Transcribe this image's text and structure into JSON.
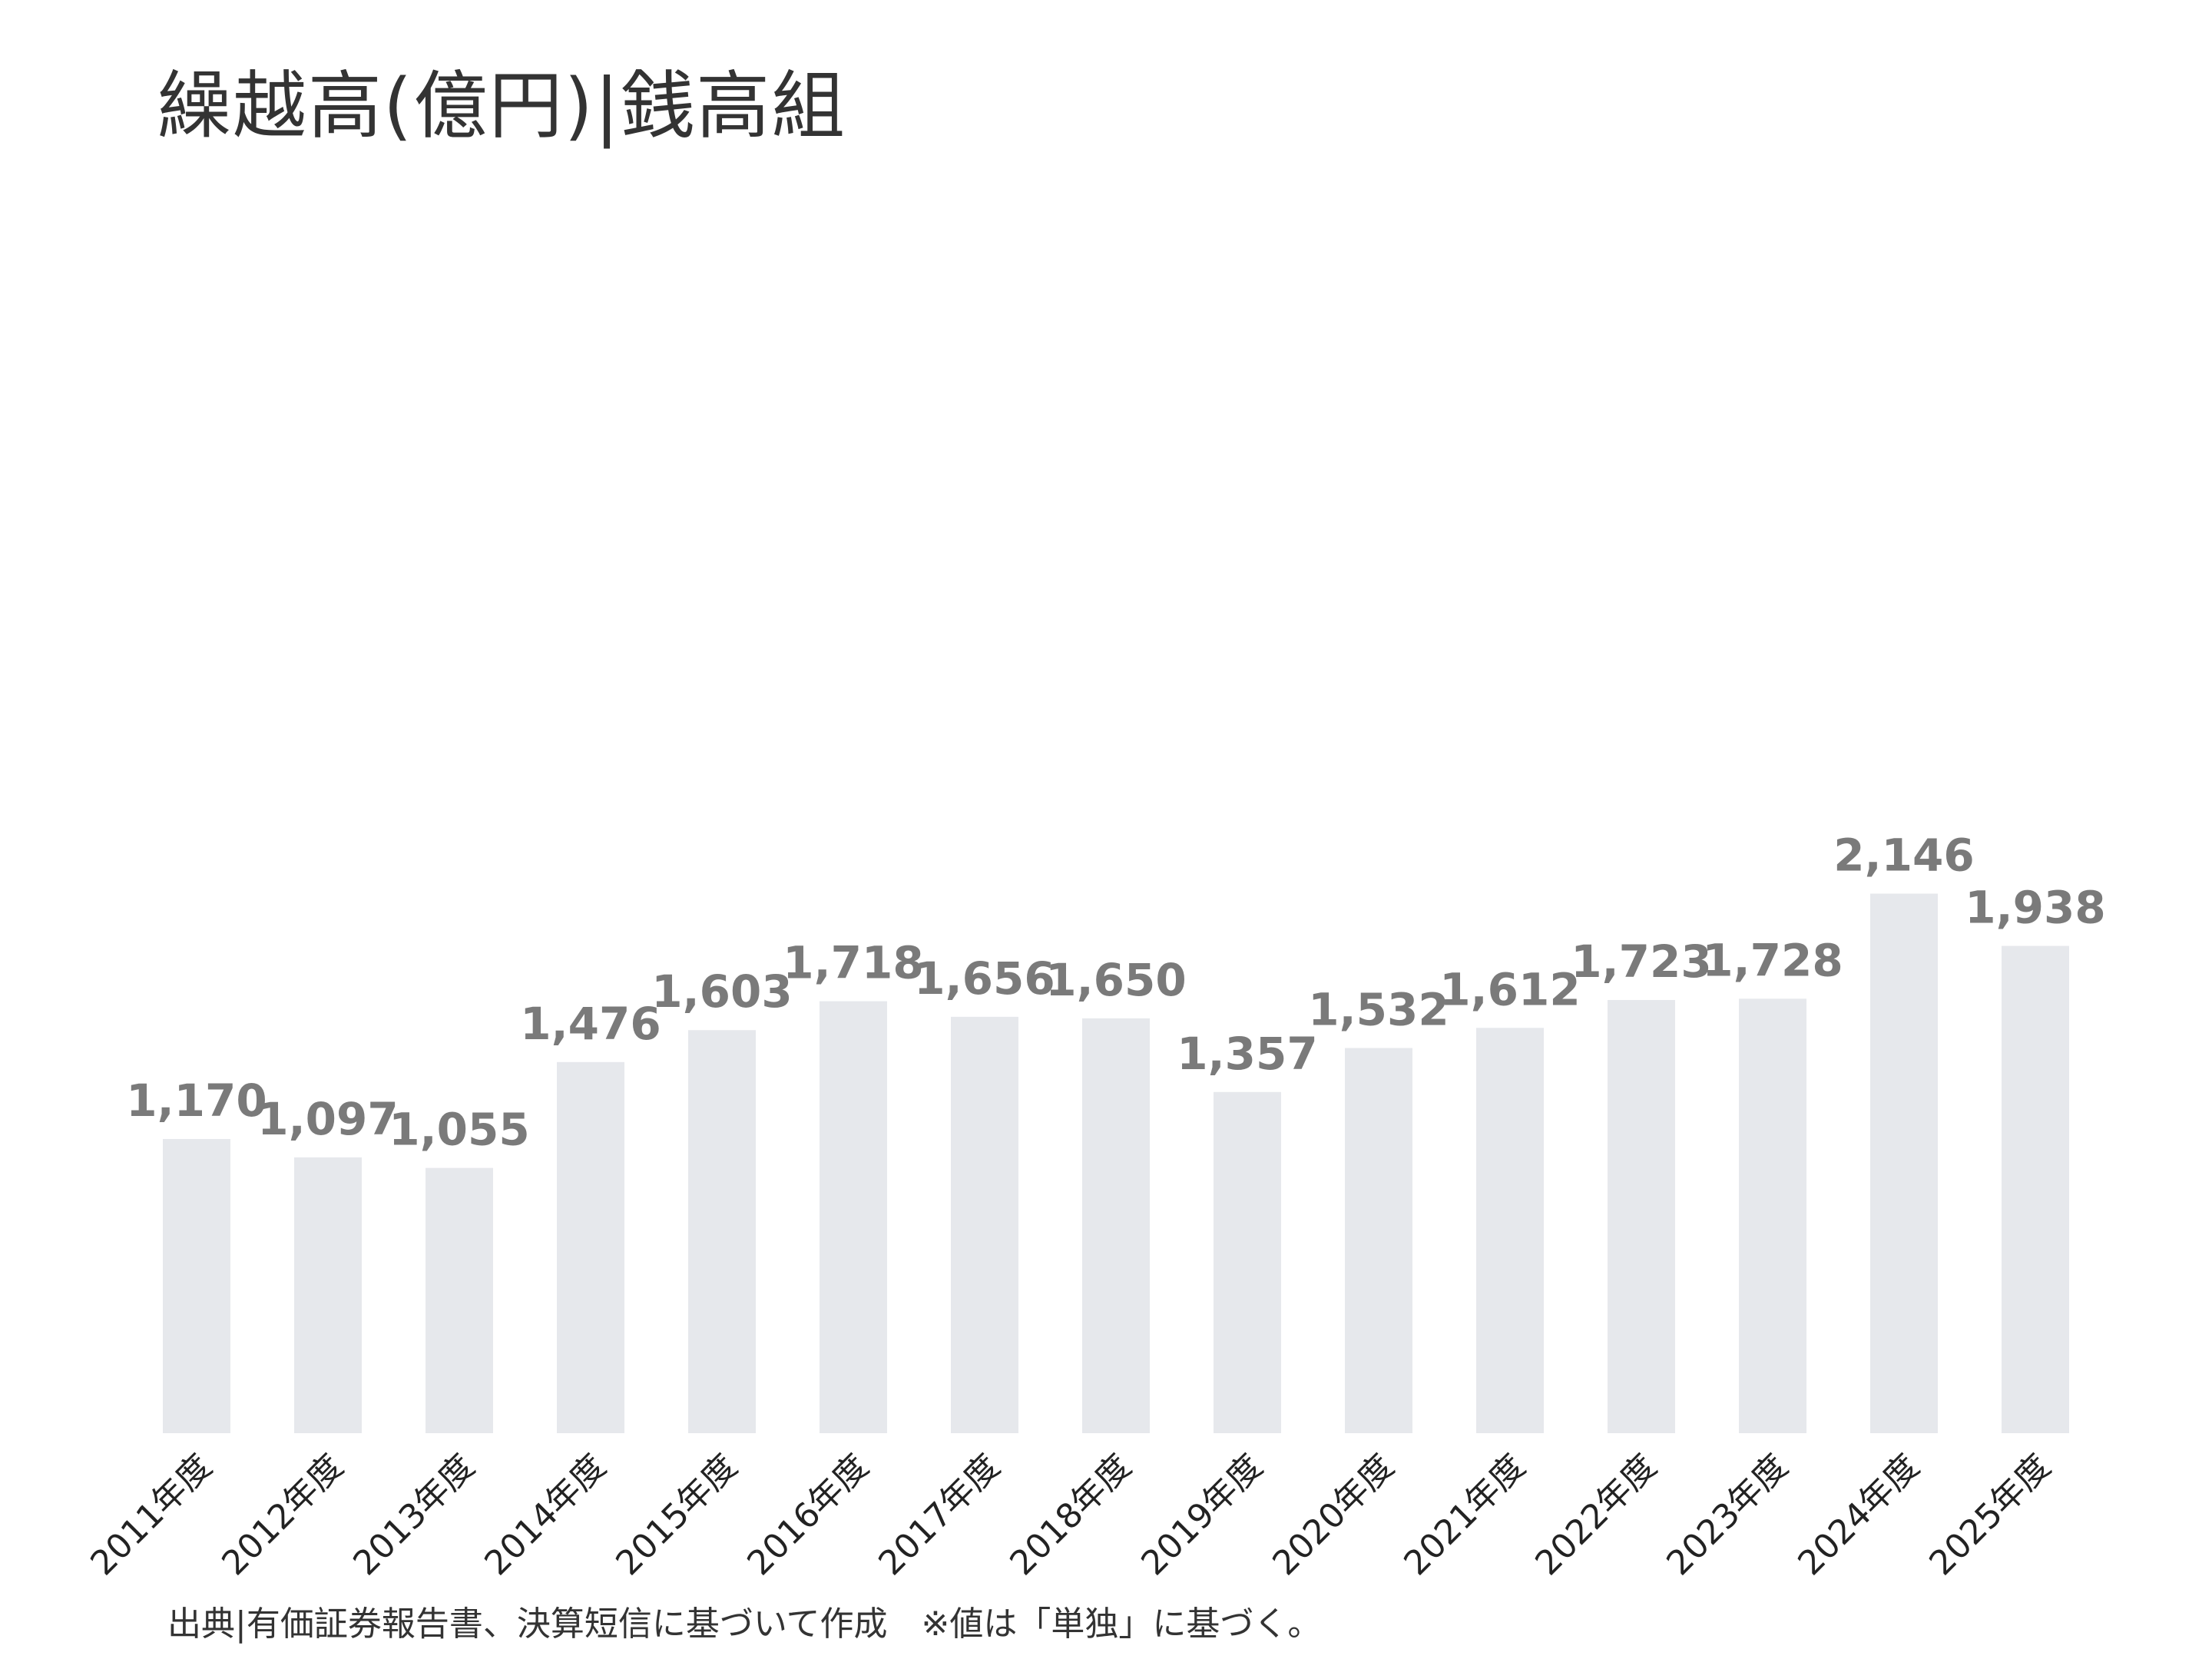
{
  "title": "繰越高(億円)|銭高組",
  "source_note": "出典|有価証券報告書、決算短信に基づいて作成　※値は「単独」に基づく。",
  "colors": {
    "bar": "#e6e8ec",
    "value_label": "#7a7a7a",
    "tick_label": "#222222",
    "title": "#333333"
  },
  "chart_data": {
    "type": "bar",
    "title": "繰越高(億円)|銭高組",
    "xlabel": "",
    "ylabel": "",
    "categories": [
      "2011年度",
      "2012年度",
      "2013年度",
      "2014年度",
      "2015年度",
      "2016年度",
      "2017年度",
      "2018年度",
      "2019年度",
      "2020年度",
      "2021年度",
      "2022年度",
      "2023年度",
      "2024年度",
      "2025年度"
    ],
    "values": [
      1170,
      1097,
      1055,
      1476,
      1603,
      1718,
      1656,
      1650,
      1357,
      1532,
      1612,
      1723,
      1728,
      2146,
      1938
    ],
    "value_labels": [
      "1,170",
      "1,097",
      "1,055",
      "1,476",
      "1,603",
      "1,718",
      "1,656",
      "1,650",
      "1,357",
      "1,532",
      "1,612",
      "1,723",
      "1,728",
      "2,146",
      "1,938"
    ],
    "ylim": [
      0,
      5700
    ],
    "grid": false,
    "legend": "none"
  }
}
